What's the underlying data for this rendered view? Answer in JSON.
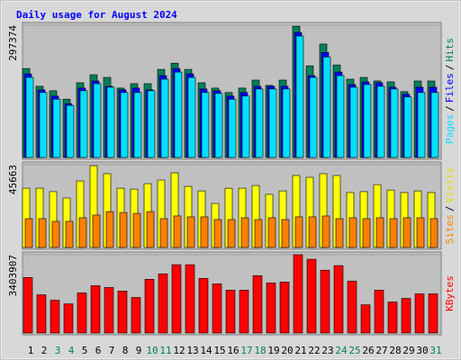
{
  "chart_data": {
    "type": "bar",
    "title": "Daily usage for August 2024",
    "categories": [
      "1",
      "2",
      "3",
      "4",
      "5",
      "6",
      "7",
      "8",
      "9",
      "10",
      "11",
      "12",
      "13",
      "14",
      "15",
      "16",
      "17",
      "18",
      "19",
      "20",
      "21",
      "22",
      "23",
      "24",
      "25",
      "26",
      "27",
      "28",
      "29",
      "30",
      "31"
    ],
    "category_colors": [
      "#000000",
      "#000000",
      "#00805c",
      "#00805c",
      "#000000",
      "#000000",
      "#000000",
      "#000000",
      "#000000",
      "#00805c",
      "#00805c",
      "#000000",
      "#000000",
      "#000000",
      "#000000",
      "#000000",
      "#00805c",
      "#00805c",
      "#000000",
      "#000000",
      "#000000",
      "#000000",
      "#000000",
      "#00805c",
      "#00805c",
      "#000000",
      "#000000",
      "#000000",
      "#000000",
      "#000000",
      "#00805c"
    ],
    "legend_separator": "/",
    "panels": [
      {
        "ylim": [
          0,
          297374
        ],
        "yticks": [
          297374
        ],
        "series": [
          {
            "name": "Hits",
            "color": "#00805c",
            "values": [
              200000,
              160000,
              150000,
              131000,
              168000,
              186000,
              180000,
              156000,
              166000,
              166000,
              198000,
              212000,
              198000,
              168000,
              156000,
              146000,
              156000,
              174000,
              162000,
              174000,
              295000,
              206000,
              255000,
              208000,
              176000,
              180000,
              172000,
              170000,
              148000,
              172000,
              172000
            ]
          },
          {
            "name": "Files",
            "color": "#0000ff",
            "values": [
              188000,
              152000,
              138000,
              121000,
              156000,
              172000,
              160000,
              152000,
              156000,
              152000,
              184000,
              200000,
              188000,
              154000,
              150000,
              138000,
              146000,
              160000,
              160000,
              160000,
              281000,
              184000,
              236000,
              192000,
              164000,
              170000,
              168000,
              158000,
              142000,
              158000,
              158000
            ]
          },
          {
            "name": "Pages",
            "color": "#00e0ff",
            "values": [
              180000,
              146000,
              131000,
              117000,
              150000,
              166000,
              158000,
              146000,
              146000,
              150000,
              176000,
              192000,
              180000,
              146000,
              144000,
              131000,
              138000,
              154000,
              154000,
              154000,
              273000,
              180000,
              226000,
              184000,
              158000,
              164000,
              160000,
              154000,
              136000,
              146000,
              146000
            ]
          }
        ]
      },
      {
        "ylim": [
          0,
          45663
        ],
        "yticks": [
          45663
        ],
        "series": [
          {
            "name": "Visits",
            "color": "#ffff00",
            "values": [
              32700,
              32700,
              30800,
              27300,
              36700,
              45100,
              40700,
              32700,
              32200,
              35200,
              37200,
              41200,
              33700,
              31200,
              24300,
              32700,
              32700,
              34200,
              29300,
              31200,
              39700,
              38700,
              40700,
              39700,
              30300,
              30800,
              34700,
              31700,
              30300,
              31200,
              30300
            ]
          },
          {
            "name": "Sites",
            "color": "#ff8000",
            "values": [
              15900,
              15900,
              14400,
              14400,
              16400,
              17900,
              19800,
              19300,
              18800,
              19800,
              15900,
              17400,
              16900,
              16900,
              15400,
              15400,
              16400,
              15400,
              16400,
              15400,
              16900,
              16900,
              17400,
              15900,
              16400,
              15900,
              16400,
              15900,
              16400,
              16400,
              15900
            ]
          }
        ]
      },
      {
        "ylim": [
          0,
          3403907
        ],
        "yticks": [
          3403907
        ],
        "series": [
          {
            "name": "KBytes",
            "color": "#ff0000",
            "values": [
              2414000,
              1662000,
              1425000,
              1267000,
              1742000,
              2058000,
              1979000,
              1821000,
              1544000,
              2335000,
              2573000,
              2969000,
              2969000,
              2375000,
              2137000,
              1860000,
              1860000,
              2494000,
              2177000,
              2216000,
              3403907,
              3206000,
              2731000,
              2929000,
              2256000,
              1227000,
              1860000,
              1346000,
              1504000,
              1702000,
              1702000
            ]
          }
        ]
      }
    ]
  }
}
